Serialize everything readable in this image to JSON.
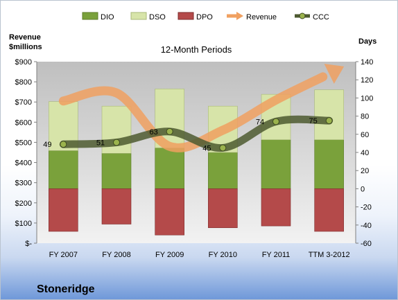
{
  "chart_data": {
    "type": "bar",
    "title": "12-Month Periods",
    "left_axis_title": [
      "Revenue",
      "$millions"
    ],
    "right_axis_title": "Days",
    "categories": [
      "FY 2007",
      "FY 2008",
      "FY 2009",
      "FY 2010",
      "FY 2011",
      "TTM 3-2012"
    ],
    "left_ticks": [
      "$-",
      "$100",
      "$200",
      "$300",
      "$400",
      "$500",
      "$600",
      "$700",
      "$800",
      "$900"
    ],
    "right_ticks": [
      "-60",
      "-40",
      "-20",
      "0",
      "20",
      "40",
      "60",
      "80",
      "100",
      "120",
      "140"
    ],
    "ylim_left": [
      0,
      900
    ],
    "ylim_right": [
      -60,
      140
    ],
    "grid": false,
    "legend_position": "top",
    "series": [
      {
        "name": "DIO",
        "type": "stacked-bar",
        "axis": "right",
        "color": "#7aa13b",
        "values": [
          42,
          39,
          45,
          40,
          54,
          54
        ]
      },
      {
        "name": "DSO",
        "type": "stacked-bar",
        "axis": "right",
        "color": "#d7e4a9",
        "values": [
          96,
          91,
          110,
          91,
          104,
          109
        ]
      },
      {
        "name": "DPO",
        "type": "stacked-bar-negative",
        "axis": "right",
        "color": "#b44a4a",
        "values": [
          -47,
          -39,
          -51,
          -43,
          -41,
          -47
        ]
      },
      {
        "name": "Revenue",
        "type": "line",
        "axis": "left",
        "color": "#f0a060",
        "values": [
          705,
          745,
          480,
          560,
          710,
          840
        ]
      },
      {
        "name": "CCC",
        "type": "line",
        "axis": "right",
        "color": "#4d5a30",
        "values": [
          49,
          51,
          63,
          45,
          74,
          75
        ],
        "labels": [
          "49",
          "51",
          "63",
          "45",
          "74",
          "75"
        ]
      }
    ]
  },
  "company": "Stoneridge"
}
